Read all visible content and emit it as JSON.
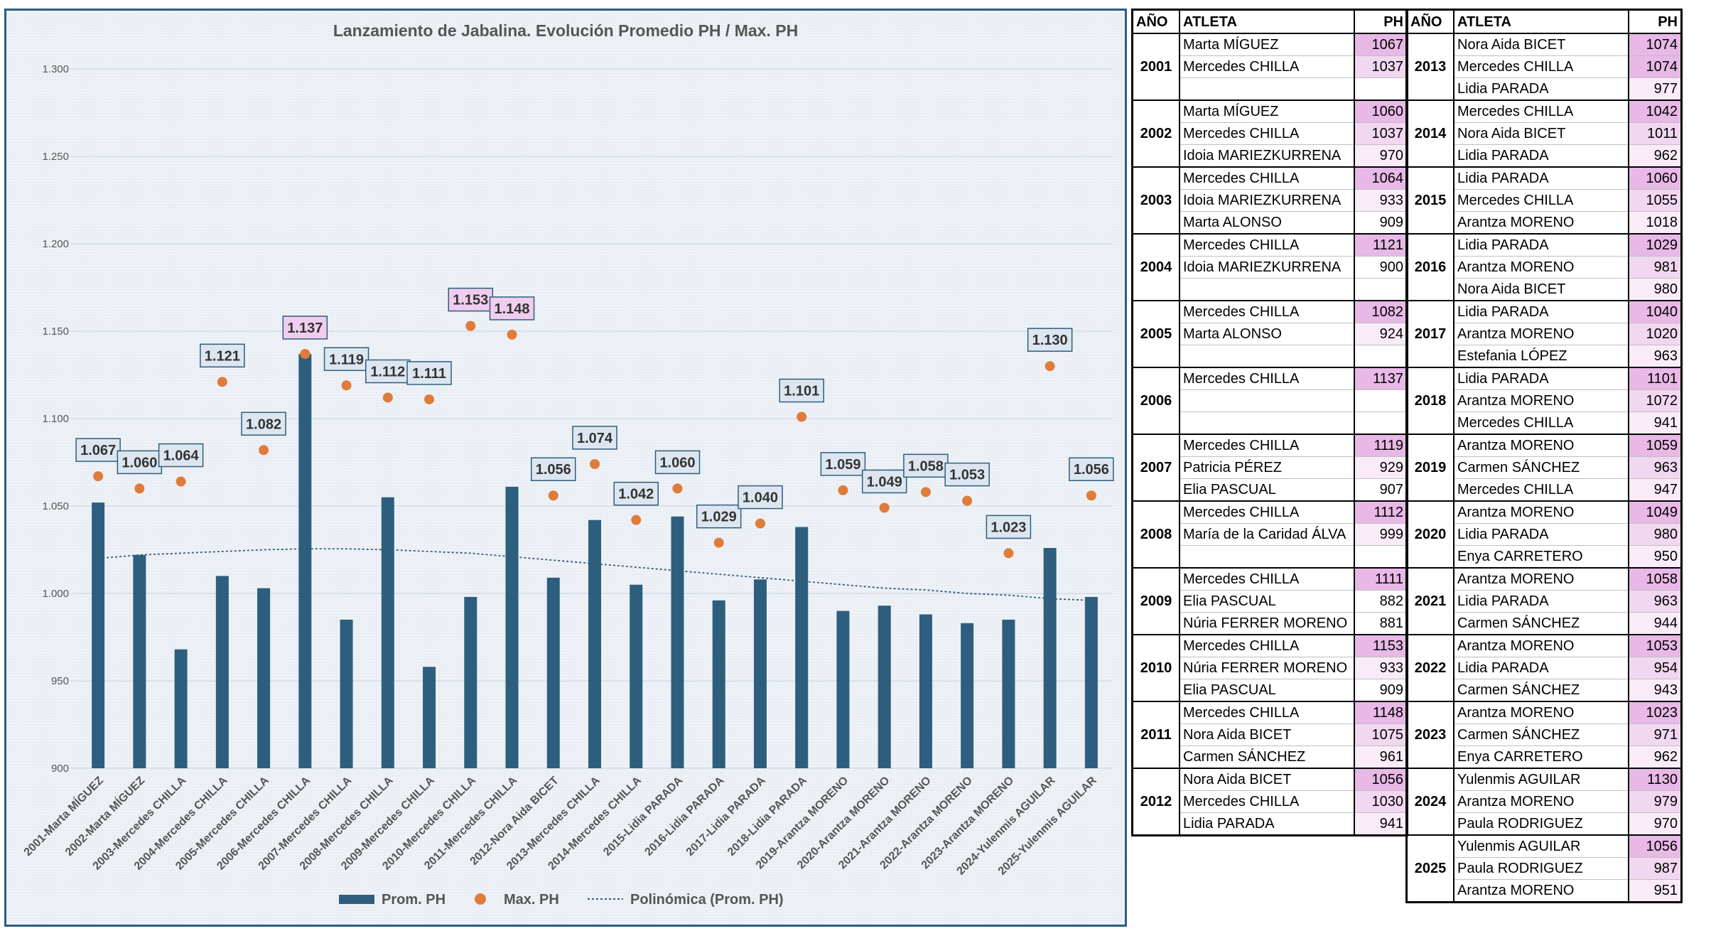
{
  "chart_data": {
    "type": "bar",
    "title": "Lanzamiento de Jabalina. Evolución Promedio PH / Max. PH",
    "ylim": [
      900,
      1300
    ],
    "yticks": [
      "900",
      "950",
      "1.000",
      "1.050",
      "1.100",
      "1.150",
      "1.200",
      "1.250",
      "1.300"
    ],
    "categories": [
      "2001-Marta MÍGUEZ",
      "2002-Marta MÍGUEZ",
      "2003-Mercedes CHILLA",
      "2004-Mercedes CHILLA",
      "2005-Mercedes CHILLA",
      "2006-Mercedes CHILLA",
      "2007-Mercedes CHILLA",
      "2008-Mercedes CHILLA",
      "2009-Mercedes CHILLA",
      "2010-Mercedes CHILLA",
      "2011-Mercedes CHILLA",
      "2012-Nora Aida BICET",
      "2013-Mercedes CHILLA",
      "2014-Mercedes CHILLA",
      "2015-Lidia PARADA",
      "2016-Lidia PARADA",
      "2017-Lidia PARADA",
      "2018-Lidia PARADA",
      "2019-Arantza MORENO",
      "2020-Arantza MORENO",
      "2021-Arantza MORENO",
      "2022-Arantza MORENO",
      "2023-Arantza MORENO",
      "2024-Yulenmis AGUILAR",
      "2025-Yulenmis AGUILAR"
    ],
    "series": [
      {
        "name": "Prom. PH",
        "type": "bar",
        "color": "#2e5e7e",
        "values": [
          1052,
          1022,
          968,
          1010,
          1003,
          1137,
          985,
          1055,
          958,
          998,
          1061,
          1009,
          1042,
          1005,
          1044,
          996,
          1008,
          1038,
          990,
          993,
          988,
          983,
          985,
          1026,
          998
        ]
      },
      {
        "name": "Max. PH",
        "type": "scatter",
        "color": "#e07b39",
        "values": [
          1067,
          1060,
          1064,
          1121,
          1082,
          1137,
          1119,
          1112,
          1111,
          1153,
          1148,
          1056,
          1074,
          1042,
          1060,
          1029,
          1040,
          1101,
          1059,
          1049,
          1058,
          1053,
          1023,
          1130,
          1056
        ]
      },
      {
        "name": "Polinómica (Prom. PH)",
        "type": "trendline",
        "color": "#2e5e7e",
        "values": [
          1020,
          1022,
          1023,
          1024,
          1025,
          1025.5,
          1025.5,
          1025,
          1024,
          1023,
          1021,
          1019,
          1017,
          1015,
          1013,
          1011,
          1009,
          1007,
          1005,
          1003,
          1002,
          1000,
          999,
          997,
          996
        ]
      }
    ],
    "data_labels": [
      "1.067",
      "1.060",
      "1.064",
      "1.121",
      "1.082",
      "1.137",
      "1.119",
      "1.112",
      "1.111",
      "1.153",
      "1.148",
      "1.056",
      "1.074",
      "1.042",
      "1.060",
      "1.029",
      "1.040",
      "1.101",
      "1.059",
      "1.049",
      "1.058",
      "1.053",
      "1.023",
      "1.130",
      "1.056"
    ],
    "highlight_labels": [
      5,
      9,
      10
    ],
    "legend_position": "bottom",
    "grid": true
  },
  "table_left": {
    "headers": {
      "year": "AÑO",
      "athlete": "ATLETA",
      "ph": "PH"
    },
    "groups": [
      {
        "year": "2001",
        "rows": [
          {
            "athlete": "Marta MÍGUEZ",
            "ph": "1067",
            "hl": "strong"
          },
          {
            "athlete": "Mercedes CHILLA",
            "ph": "1037",
            "hl": "light"
          }
        ]
      },
      {
        "year": "2002",
        "rows": [
          {
            "athlete": "Marta MÍGUEZ",
            "ph": "1060",
            "hl": "strong"
          },
          {
            "athlete": "Mercedes CHILLA",
            "ph": "1037",
            "hl": "light"
          },
          {
            "athlete": "Idoia MARIEZKURRENA",
            "ph": "970",
            "hl": "faint"
          }
        ]
      },
      {
        "year": "2003",
        "rows": [
          {
            "athlete": "Mercedes CHILLA",
            "ph": "1064",
            "hl": "strong"
          },
          {
            "athlete": "Idoia MARIEZKURRENA",
            "ph": "933",
            "hl": "faint"
          },
          {
            "athlete": "Marta ALONSO",
            "ph": "909",
            "hl": "none"
          }
        ]
      },
      {
        "year": "2004",
        "rows": [
          {
            "athlete": "Mercedes CHILLA",
            "ph": "1121",
            "hl": "strong"
          },
          {
            "athlete": "Idoia MARIEZKURRENA",
            "ph": "900",
            "hl": "none"
          }
        ]
      },
      {
        "year": "2005",
        "rows": [
          {
            "athlete": "Mercedes CHILLA",
            "ph": "1082",
            "hl": "strong"
          },
          {
            "athlete": "Marta ALONSO",
            "ph": "924",
            "hl": "faint"
          }
        ]
      },
      {
        "year": "2006",
        "rows": [
          {
            "athlete": "Mercedes CHILLA",
            "ph": "1137",
            "hl": "strong"
          }
        ]
      },
      {
        "year": "2007",
        "rows": [
          {
            "athlete": "Mercedes CHILLA",
            "ph": "1119",
            "hl": "strong"
          },
          {
            "athlete": "Patricia PÉREZ",
            "ph": "929",
            "hl": "faint"
          },
          {
            "athlete": "Elia PASCUAL",
            "ph": "907",
            "hl": "none"
          }
        ]
      },
      {
        "year": "2008",
        "rows": [
          {
            "athlete": "Mercedes CHILLA",
            "ph": "1112",
            "hl": "strong"
          },
          {
            "athlete": "María de la Caridad ÁLVA",
            "ph": "999",
            "hl": "faint"
          }
        ]
      },
      {
        "year": "2009",
        "rows": [
          {
            "athlete": "Mercedes CHILLA",
            "ph": "1111",
            "hl": "strong"
          },
          {
            "athlete": "Elia PASCUAL",
            "ph": "882",
            "hl": "none"
          },
          {
            "athlete": "Núria FERRER MORENO",
            "ph": "881",
            "hl": "none"
          }
        ]
      },
      {
        "year": "2010",
        "rows": [
          {
            "athlete": "Mercedes CHILLA",
            "ph": "1153",
            "hl": "strong"
          },
          {
            "athlete": "Núria FERRER MORENO",
            "ph": "933",
            "hl": "faint"
          },
          {
            "athlete": "Elia PASCUAL",
            "ph": "909",
            "hl": "none"
          }
        ]
      },
      {
        "year": "2011",
        "rows": [
          {
            "athlete": "Mercedes CHILLA",
            "ph": "1148",
            "hl": "strong"
          },
          {
            "athlete": "Nora Aida BICET",
            "ph": "1075",
            "hl": "light"
          },
          {
            "athlete": "Carmen SÁNCHEZ",
            "ph": "961",
            "hl": "faint"
          }
        ]
      },
      {
        "year": "2012",
        "rows": [
          {
            "athlete": "Nora Aida BICET",
            "ph": "1056",
            "hl": "strong"
          },
          {
            "athlete": "Mercedes CHILLA",
            "ph": "1030",
            "hl": "light"
          },
          {
            "athlete": "Lidia PARADA",
            "ph": "941",
            "hl": "faint"
          }
        ]
      }
    ]
  },
  "table_right": {
    "headers": {
      "year": "AÑO",
      "athlete": "ATLETA",
      "ph": "PH"
    },
    "groups": [
      {
        "year": "2013",
        "rows": [
          {
            "athlete": "Nora Aida BICET",
            "ph": "1074",
            "hl": "strong"
          },
          {
            "athlete": "Mercedes CHILLA",
            "ph": "1074",
            "hl": "strong"
          },
          {
            "athlete": "Lidia PARADA",
            "ph": "977",
            "hl": "faint"
          }
        ]
      },
      {
        "year": "2014",
        "rows": [
          {
            "athlete": "Mercedes CHILLA",
            "ph": "1042",
            "hl": "strong"
          },
          {
            "athlete": "Nora Aida BICET",
            "ph": "1011",
            "hl": "light"
          },
          {
            "athlete": "Lidia PARADA",
            "ph": "962",
            "hl": "faint"
          }
        ]
      },
      {
        "year": "2015",
        "rows": [
          {
            "athlete": "Lidia PARADA",
            "ph": "1060",
            "hl": "strong"
          },
          {
            "athlete": "Mercedes CHILLA",
            "ph": "1055",
            "hl": "light"
          },
          {
            "athlete": "Arantza MORENO",
            "ph": "1018",
            "hl": "faint"
          }
        ]
      },
      {
        "year": "2016",
        "rows": [
          {
            "athlete": "Lidia PARADA",
            "ph": "1029",
            "hl": "strong"
          },
          {
            "athlete": "Arantza MORENO",
            "ph": "981",
            "hl": "light"
          },
          {
            "athlete": "Nora Aida BICET",
            "ph": "980",
            "hl": "faint"
          }
        ]
      },
      {
        "year": "2017",
        "rows": [
          {
            "athlete": "Lidia PARADA",
            "ph": "1040",
            "hl": "strong"
          },
          {
            "athlete": "Arantza MORENO",
            "ph": "1020",
            "hl": "light"
          },
          {
            "athlete": "Estefania LÓPEZ",
            "ph": "963",
            "hl": "faint"
          }
        ]
      },
      {
        "year": "2018",
        "rows": [
          {
            "athlete": "Lidia PARADA",
            "ph": "1101",
            "hl": "strong"
          },
          {
            "athlete": "Arantza MORENO",
            "ph": "1072",
            "hl": "light"
          },
          {
            "athlete": "Mercedes CHILLA",
            "ph": "941",
            "hl": "faint"
          }
        ]
      },
      {
        "year": "2019",
        "rows": [
          {
            "athlete": "Arantza MORENO",
            "ph": "1059",
            "hl": "strong"
          },
          {
            "athlete": "Carmen SÁNCHEZ",
            "ph": "963",
            "hl": "light"
          },
          {
            "athlete": "Mercedes CHILLA",
            "ph": "947",
            "hl": "faint"
          }
        ]
      },
      {
        "year": "2020",
        "rows": [
          {
            "athlete": "Arantza MORENO",
            "ph": "1049",
            "hl": "strong"
          },
          {
            "athlete": "Lidia PARADA",
            "ph": "980",
            "hl": "light"
          },
          {
            "athlete": "Enya CARRETERO",
            "ph": "950",
            "hl": "faint"
          }
        ]
      },
      {
        "year": "2021",
        "rows": [
          {
            "athlete": "Arantza MORENO",
            "ph": "1058",
            "hl": "strong"
          },
          {
            "athlete": "Lidia PARADA",
            "ph": "963",
            "hl": "light"
          },
          {
            "athlete": "Carmen SÁNCHEZ",
            "ph": "944",
            "hl": "faint"
          }
        ]
      },
      {
        "year": "2022",
        "rows": [
          {
            "athlete": "Arantza MORENO",
            "ph": "1053",
            "hl": "strong"
          },
          {
            "athlete": "Lidia PARADA",
            "ph": "954",
            "hl": "light"
          },
          {
            "athlete": "Carmen SÁNCHEZ",
            "ph": "943",
            "hl": "faint"
          }
        ]
      },
      {
        "year": "2023",
        "rows": [
          {
            "athlete": "Arantza MORENO",
            "ph": "1023",
            "hl": "strong"
          },
          {
            "athlete": "Carmen SÁNCHEZ",
            "ph": "971",
            "hl": "light"
          },
          {
            "athlete": "Enya CARRETERO",
            "ph": "962",
            "hl": "faint"
          }
        ]
      },
      {
        "year": "2024",
        "rows": [
          {
            "athlete": "Yulenmis AGUILAR",
            "ph": "1130",
            "hl": "strong"
          },
          {
            "athlete": "Arantza MORENO",
            "ph": "979",
            "hl": "light"
          },
          {
            "athlete": "Paula RODRIGUEZ",
            "ph": "970",
            "hl": "faint"
          }
        ]
      },
      {
        "year": "2025",
        "rows": [
          {
            "athlete": "Yulenmis AGUILAR",
            "ph": "1056",
            "hl": "strong"
          },
          {
            "athlete": "Paula RODRIGUEZ",
            "ph": "987",
            "hl": "light"
          },
          {
            "athlete": "Arantza MORENO",
            "ph": "951",
            "hl": "faint"
          }
        ]
      }
    ]
  },
  "colors": {
    "bar": "#2e5e7e",
    "marker": "#e07b39",
    "label_box": "#dde6f0",
    "label_box_hl": "#f0cdee",
    "strong": "#e8b8e6",
    "light": "#f1d7f0",
    "faint": "#f9ecf8"
  }
}
